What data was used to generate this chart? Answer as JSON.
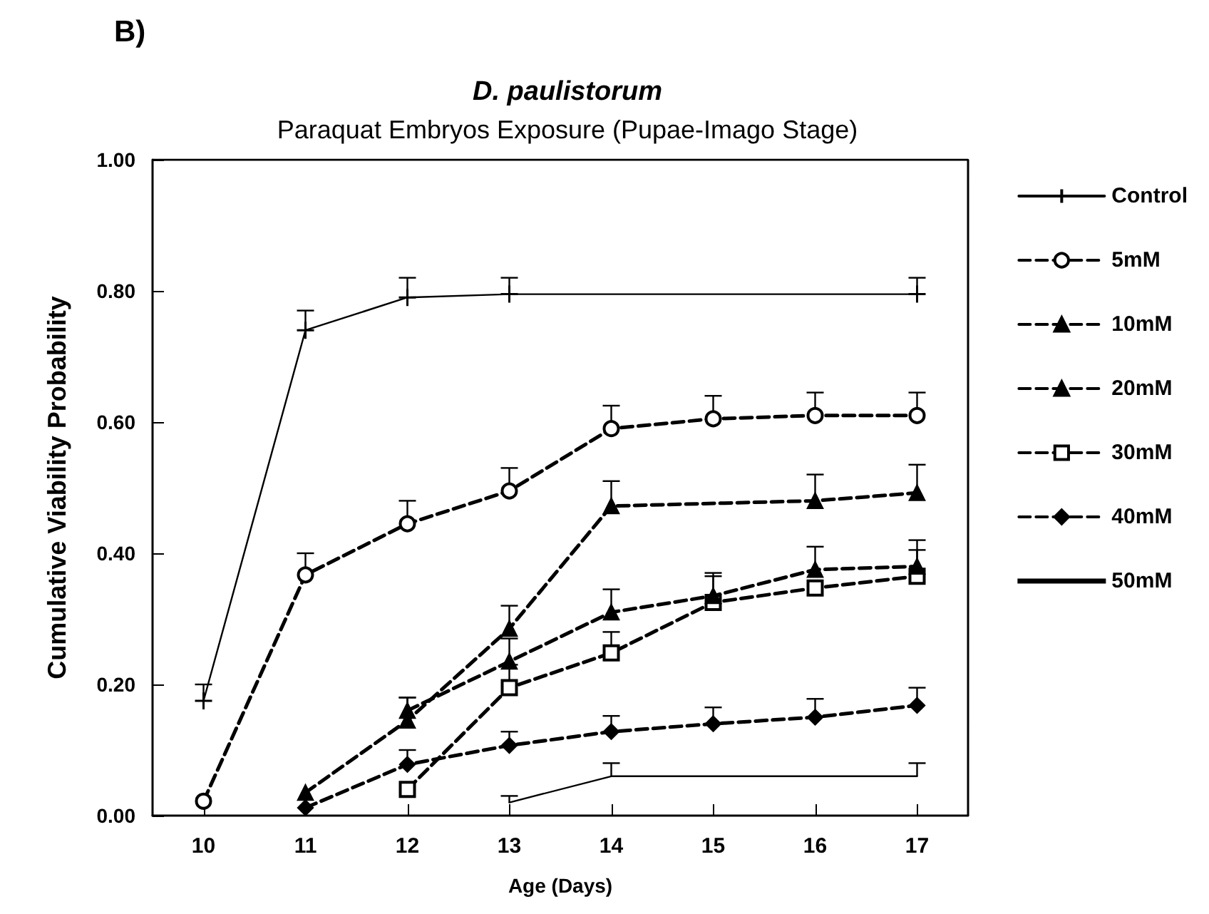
{
  "chart_data": {
    "type": "line",
    "title": "D. paulistorum",
    "subtitle": "Paraquat Embryos Exposure (Pupae-Imago Stage)",
    "xlabel": "Age (Days)",
    "ylabel": "Cumulative Viability Probability",
    "annotations": [
      "B)"
    ],
    "xlim": [
      9.5,
      17.5
    ],
    "xticks": [
      10,
      11,
      12,
      13,
      14,
      15,
      16,
      17
    ],
    "ylim": [
      0,
      1
    ],
    "yticks": [
      {
        "value": 0,
        "label": "0.00"
      },
      {
        "value": 0.2,
        "label": "0.20"
      },
      {
        "value": 0.4,
        "label": "0.40"
      },
      {
        "value": 0.6,
        "label": "0.60"
      },
      {
        "value": 0.8,
        "label": "0.80"
      },
      {
        "value": 1,
        "label": "1.00"
      }
    ],
    "grid": false,
    "legend": "right",
    "series": [
      {
        "name": "Control",
        "color": "#000000",
        "marker": "cross",
        "line_style": "solid",
        "x": [
          10,
          11,
          12,
          13,
          17
        ],
        "values": [
          0.175,
          0.74,
          0.79,
          0.795,
          0.795
        ],
        "errors": [
          [
            0.175,
            0.2
          ],
          [
            0.74,
            0.77
          ],
          [
            0.79,
            0.82
          ],
          [
            0.795,
            0.82
          ],
          [
            0.795,
            0.82
          ]
        ]
      },
      {
        "name": "5mM",
        "color": "#000000",
        "marker": "circle",
        "line_style": "dashed",
        "x": [
          10,
          11,
          12,
          13,
          14,
          15,
          16,
          17
        ],
        "values": [
          0.022,
          0.367,
          0.445,
          0.495,
          0.59,
          0.605,
          0.61,
          0.61
        ],
        "errors": [
          null,
          [
            0.367,
            0.4
          ],
          [
            0.445,
            0.48
          ],
          [
            0.495,
            0.53
          ],
          [
            0.59,
            0.625
          ],
          [
            0.605,
            0.64
          ],
          [
            0.61,
            0.645
          ],
          [
            0.61,
            0.645
          ]
        ]
      },
      {
        "name": "10mM",
        "color": "#000000",
        "marker": "triangle",
        "line_style": "dashed",
        "x": [
          11,
          12,
          13,
          14,
          16,
          17
        ],
        "values": [
          0.035,
          0.145,
          0.285,
          0.472,
          0.48,
          0.492
        ],
        "errors": [
          null,
          [
            0.145,
            0.18
          ],
          [
            0.285,
            0.32
          ],
          [
            0.472,
            0.51
          ],
          [
            0.48,
            0.52
          ],
          [
            0.492,
            0.535
          ]
        ]
      },
      {
        "name": "20mM",
        "color": "#000000",
        "marker": "triangle",
        "line_style": "dashed",
        "x": [
          12,
          13,
          14,
          15,
          16,
          17
        ],
        "values": [
          0.16,
          0.235,
          0.31,
          0.335,
          0.375,
          0.38
        ],
        "errors": [
          [
            0.16,
            0.18
          ],
          [
            0.235,
            0.27
          ],
          [
            0.31,
            0.345
          ],
          [
            0.335,
            0.37
          ],
          [
            0.375,
            0.41
          ],
          [
            0.38,
            0.42
          ]
        ]
      },
      {
        "name": "30mM",
        "color": "#000000",
        "marker": "square",
        "line_style": "dashed",
        "x": [
          12,
          13,
          14,
          15,
          16,
          17
        ],
        "values": [
          0.04,
          0.195,
          0.248,
          0.325,
          0.347,
          0.365
        ],
        "errors": [
          null,
          [
            0.195,
            0.23
          ],
          [
            0.248,
            0.28
          ],
          [
            0.325,
            0.365
          ],
          null,
          [
            0.365,
            0.405
          ]
        ]
      },
      {
        "name": "40mM",
        "color": "#000000",
        "marker": "diamond",
        "line_style": "dashed",
        "x": [
          11,
          12,
          13,
          14,
          15,
          16,
          17
        ],
        "values": [
          0.012,
          0.078,
          0.107,
          0.128,
          0.14,
          0.15,
          0.168
        ],
        "errors": [
          null,
          [
            0.078,
            0.1
          ],
          [
            0.107,
            0.128
          ],
          [
            0.128,
            0.152
          ],
          [
            0.14,
            0.165
          ],
          [
            0.15,
            0.178
          ],
          [
            0.168,
            0.195
          ]
        ]
      },
      {
        "name": "50mM",
        "color": "#000000",
        "marker": "none",
        "line_style": "solid",
        "x": [
          13,
          14,
          17
        ],
        "values": [
          0.02,
          0.06,
          0.06
        ],
        "errors": [
          [
            0.02,
            0.03
          ],
          [
            0.06,
            0.08
          ],
          [
            0.06,
            0.08
          ]
        ]
      }
    ]
  }
}
